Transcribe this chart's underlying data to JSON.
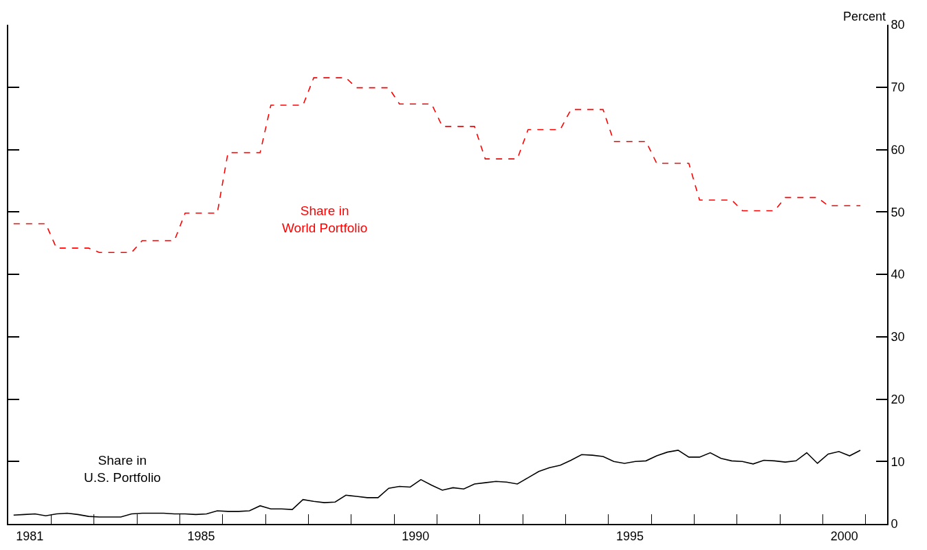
{
  "chart_data": {
    "type": "line",
    "ylabel": "Percent",
    "x": [
      1981.125,
      1981.375,
      1981.625,
      1981.875,
      1982.125,
      1982.375,
      1982.625,
      1982.875,
      1983.125,
      1983.375,
      1983.625,
      1983.875,
      1984.125,
      1984.375,
      1984.625,
      1984.875,
      1985.125,
      1985.375,
      1985.625,
      1985.875,
      1986.125,
      1986.375,
      1986.625,
      1986.875,
      1987.125,
      1987.375,
      1987.625,
      1987.875,
      1988.125,
      1988.375,
      1988.625,
      1988.875,
      1989.125,
      1989.375,
      1989.625,
      1989.875,
      1990.125,
      1990.375,
      1990.625,
      1990.875,
      1991.125,
      1991.375,
      1991.625,
      1991.875,
      1992.125,
      1992.375,
      1992.625,
      1992.875,
      1993.125,
      1993.375,
      1993.625,
      1993.875,
      1994.125,
      1994.375,
      1994.625,
      1994.875,
      1995.125,
      1995.375,
      1995.625,
      1995.875,
      1996.125,
      1996.375,
      1996.625,
      1996.875,
      1997.125,
      1997.375,
      1997.625,
      1997.875,
      1998.125,
      1998.375,
      1998.625,
      1998.875,
      1999.125,
      1999.375,
      1999.625,
      1999.875,
      2000.125,
      2000.375,
      2000.625,
      2000.875
    ],
    "series": [
      {
        "name": "Share in\nWorld Portfolio",
        "color": "#ff0000",
        "line_style": "dashed",
        "values": [
          48.1,
          48.1,
          48.1,
          48.1,
          44.2,
          44.2,
          44.2,
          44.2,
          43.5,
          43.5,
          43.5,
          43.5,
          45.4,
          45.4,
          45.4,
          45.4,
          49.8,
          49.8,
          49.8,
          49.8,
          59.5,
          59.5,
          59.5,
          59.5,
          67.1,
          67.1,
          67.1,
          67.1,
          71.5,
          71.5,
          71.5,
          71.5,
          69.9,
          69.9,
          69.9,
          69.9,
          67.3,
          67.3,
          67.3,
          67.3,
          63.7,
          63.7,
          63.7,
          63.7,
          58.5,
          58.5,
          58.5,
          58.5,
          63.2,
          63.2,
          63.2,
          63.2,
          66.4,
          66.4,
          66.4,
          66.4,
          61.3,
          61.3,
          61.3,
          61.3,
          57.8,
          57.8,
          57.8,
          57.8,
          51.9,
          51.9,
          51.9,
          51.9,
          50.2,
          50.2,
          50.2,
          50.2,
          52.3,
          52.3,
          52.3,
          52.3,
          51.0,
          51.0,
          51.0,
          51.0
        ]
      },
      {
        "name": "Share in\nU.S. Portfolio",
        "color": "#000000",
        "line_style": "solid",
        "values": [
          1.4,
          1.5,
          1.6,
          1.3,
          1.6,
          1.7,
          1.5,
          1.2,
          1.1,
          1.1,
          1.1,
          1.6,
          1.7,
          1.7,
          1.7,
          1.6,
          1.6,
          1.5,
          1.6,
          2.1,
          2.0,
          2.0,
          2.1,
          2.9,
          2.4,
          2.4,
          2.3,
          3.9,
          3.6,
          3.4,
          3.5,
          4.6,
          4.4,
          4.2,
          4.2,
          5.7,
          6.0,
          5.9,
          7.1,
          6.2,
          5.4,
          5.8,
          5.6,
          6.4,
          6.6,
          6.8,
          6.7,
          6.4,
          7.4,
          8.4,
          9.0,
          9.4,
          10.2,
          11.1,
          11.0,
          10.8,
          10.0,
          9.7,
          10.0,
          10.1,
          10.9,
          11.5,
          11.8,
          10.7,
          10.7,
          11.4,
          10.5,
          10.1,
          10.0,
          9.6,
          10.2,
          10.1,
          9.9,
          10.1,
          11.4,
          9.7,
          11.2,
          11.6,
          10.9,
          11.8
        ]
      }
    ],
    "xlim": [
      1981,
      2001.5
    ],
    "xticks": [
      {
        "value": 1981.5,
        "label": "1981"
      },
      {
        "value": 1985.5,
        "label": "1985"
      },
      {
        "value": 1990.5,
        "label": "1990"
      },
      {
        "value": 1995.5,
        "label": "1995"
      },
      {
        "value": 2000.5,
        "label": "2000"
      },
      {
        "value": 1982,
        "label": null
      },
      {
        "value": 1983,
        "label": null
      },
      {
        "value": 1984,
        "label": null
      },
      {
        "value": 1985,
        "label": null
      },
      {
        "value": 1986,
        "label": null
      },
      {
        "value": 1987,
        "label": null
      },
      {
        "value": 1988,
        "label": null
      },
      {
        "value": 1989,
        "label": null
      },
      {
        "value": 1990,
        "label": null
      },
      {
        "value": 1991,
        "label": null
      },
      {
        "value": 1992,
        "label": null
      },
      {
        "value": 1993,
        "label": null
      },
      {
        "value": 1994,
        "label": null
      },
      {
        "value": 1995,
        "label": null
      },
      {
        "value": 1996,
        "label": null
      },
      {
        "value": 1997,
        "label": null
      },
      {
        "value": 1998,
        "label": null
      },
      {
        "value": 1999,
        "label": null
      },
      {
        "value": 2000,
        "label": null
      },
      {
        "value": 2001,
        "label": null
      }
    ],
    "ylim": [
      0,
      80
    ],
    "yticks": [
      0,
      10,
      20,
      30,
      40,
      50,
      60,
      70,
      80
    ],
    "legend": false
  }
}
